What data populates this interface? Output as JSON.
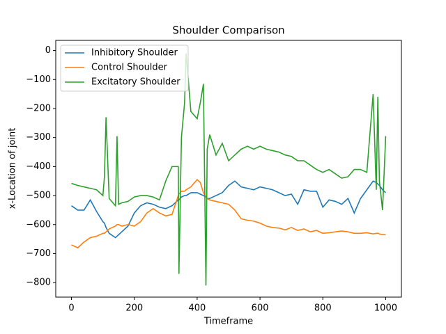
{
  "chart_data": {
    "type": "line",
    "title": "Shoulder Comparison",
    "xlabel": "Timeframe",
    "ylabel": "x-Location of joint",
    "x": [
      0,
      20,
      40,
      60,
      80,
      100,
      105,
      110,
      120,
      140,
      145,
      150,
      160,
      180,
      200,
      220,
      240,
      260,
      280,
      300,
      320,
      340,
      342,
      350,
      360,
      365,
      380,
      400,
      410,
      420,
      428,
      432,
      440,
      460,
      480,
      500,
      520,
      540,
      560,
      580,
      600,
      620,
      640,
      660,
      680,
      700,
      720,
      740,
      760,
      780,
      800,
      820,
      840,
      860,
      880,
      900,
      920,
      940,
      960,
      970,
      975,
      980,
      990,
      1000
    ],
    "series": [
      {
        "name": "Inhibitory Shoulder",
        "color": "#1f77b4",
        "values": [
          -535,
          -550,
          -550,
          -515,
          -555,
          -590,
          -595,
          -610,
          -630,
          -645,
          -640,
          -635,
          -625,
          -605,
          -560,
          -535,
          -525,
          -530,
          -540,
          -545,
          -535,
          -515,
          -515,
          -505,
          -500,
          -500,
          -490,
          -490,
          -495,
          -500,
          -505,
          -510,
          -510,
          -500,
          -490,
          -465,
          -450,
          -470,
          -475,
          -480,
          -470,
          -475,
          -480,
          -490,
          -500,
          -495,
          -530,
          -480,
          -485,
          -485,
          -540,
          -515,
          -520,
          -530,
          -510,
          -560,
          -510,
          -480,
          -450,
          -455,
          -460,
          -465,
          -480,
          -490
        ]
      },
      {
        "name": "Control Shoulder",
        "color": "#ff7f0e",
        "values": [
          -670,
          -680,
          -660,
          -645,
          -640,
          -630,
          -630,
          -625,
          -615,
          -605,
          -600,
          -600,
          -605,
          -600,
          -605,
          -590,
          -560,
          -545,
          -560,
          -570,
          -565,
          -500,
          -495,
          -485,
          -485,
          -480,
          -470,
          -445,
          -455,
          -490,
          -505,
          -510,
          -515,
          -520,
          -525,
          -530,
          -550,
          -580,
          -585,
          -588,
          -595,
          -605,
          -610,
          -612,
          -618,
          -610,
          -620,
          -615,
          -625,
          -620,
          -630,
          -628,
          -625,
          -622,
          -625,
          -630,
          -630,
          -628,
          -632,
          -630,
          -630,
          -632,
          -635,
          -635
        ]
      },
      {
        "name": "Excitatory Shoulder",
        "color": "#2ca02c",
        "values": [
          -458,
          -465,
          -470,
          -475,
          -480,
          -500,
          -435,
          -230,
          -510,
          -535,
          -295,
          -530,
          -525,
          -520,
          -505,
          -500,
          -500,
          -505,
          -515,
          -450,
          -400,
          -400,
          -770,
          -300,
          -180,
          -10,
          -210,
          -235,
          -180,
          -115,
          -810,
          -340,
          -290,
          -360,
          -320,
          -380,
          -360,
          -340,
          -330,
          -340,
          -330,
          -340,
          -345,
          -350,
          -360,
          -365,
          -380,
          -380,
          -395,
          -410,
          -420,
          -410,
          -425,
          -440,
          -435,
          -410,
          -410,
          -420,
          -150,
          -480,
          -160,
          -450,
          -550,
          -295
        ]
      }
    ],
    "xlim": [
      -50,
      1050
    ],
    "ylim": [
      -850,
      35
    ],
    "xticks": [
      0,
      200,
      400,
      600,
      800,
      1000
    ],
    "yticks": [
      0,
      {
        "value": -100,
        "label": "−100"
      },
      {
        "value": -200,
        "label": "−200"
      },
      {
        "value": -300,
        "label": "−300"
      },
      {
        "value": -400,
        "label": "−400"
      },
      {
        "value": -500,
        "label": "−500"
      },
      {
        "value": -600,
        "label": "−600"
      },
      {
        "value": -700,
        "label": "−700"
      },
      {
        "value": -800,
        "label": "−800"
      }
    ],
    "legend": "upper left",
    "grid": false
  }
}
